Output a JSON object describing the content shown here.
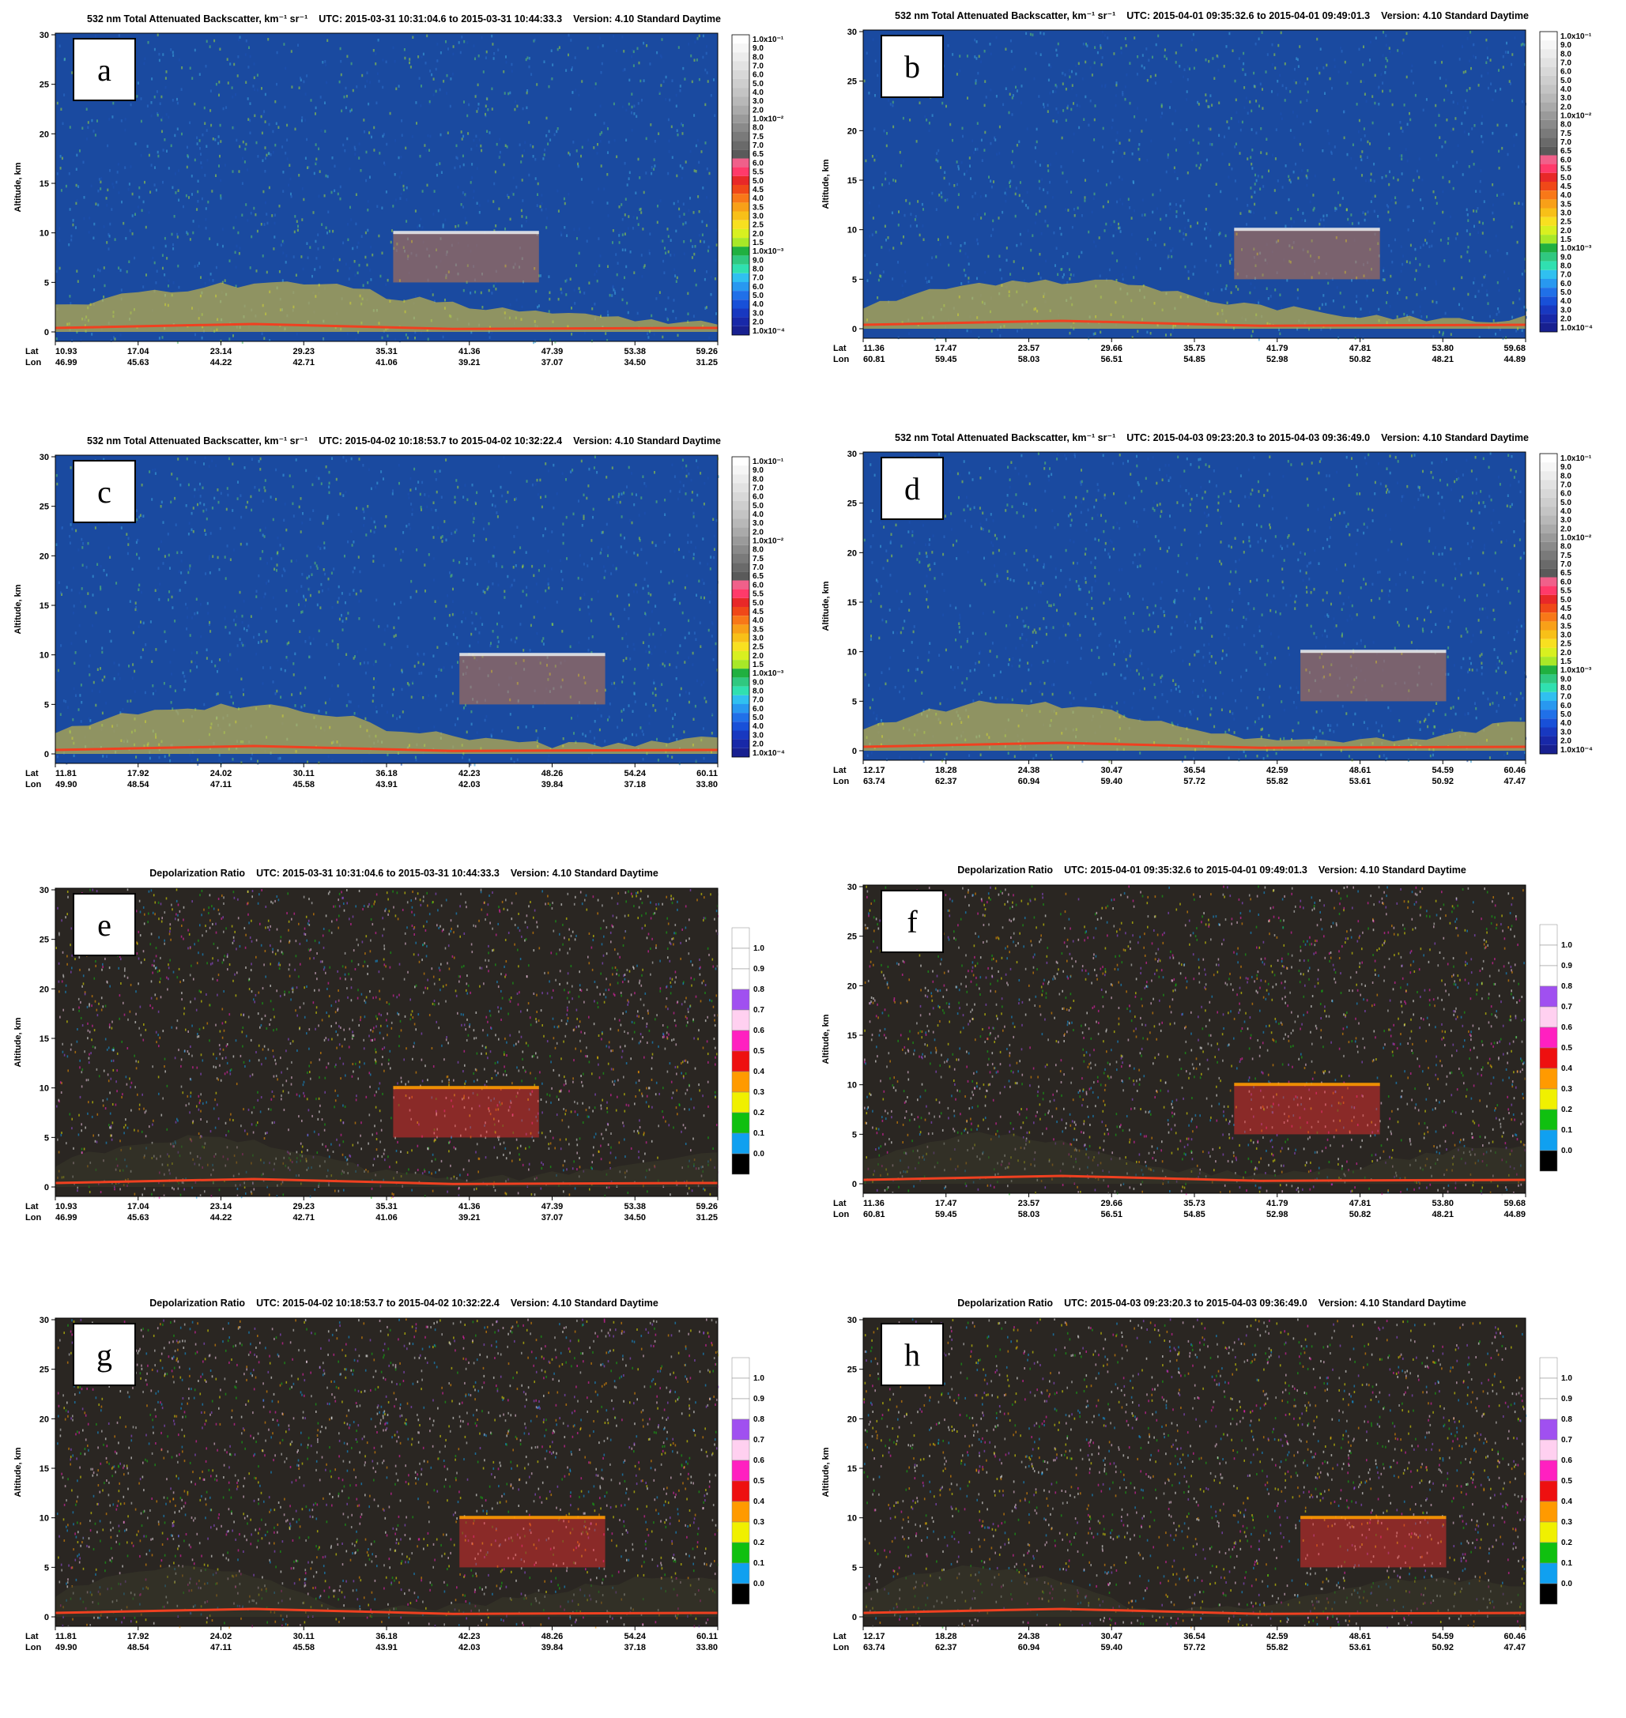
{
  "colors": {
    "back_bg": "#1a4aa0",
    "depol_bg": "#2a2622",
    "ground": "#f04020",
    "aerosol": "#f0d030",
    "cloud": "#e8e8e8",
    "depol_hi": "#ff3030"
  },
  "chart_data": [
    {
      "id": "a",
      "type": "heatmap",
      "title": "532 nm Total Attenuated Backscatter, km⁻¹ sr⁻¹",
      "utc": "UTC:  2015-03-31 10:31:04.6  to  2015-03-31 10:44:33.3",
      "version": "Version: 4.10  Standard  Daytime",
      "ylabel": "Altitude, km",
      "ylim": [
        0,
        30
      ],
      "yticks": [
        "0",
        "5",
        "10",
        "15",
        "20",
        "25",
        "30"
      ],
      "lat": [
        "10.93",
        "17.04",
        "23.14",
        "29.23",
        "35.31",
        "41.36",
        "47.39",
        "53.38",
        "59.26"
      ],
      "lon": [
        "46.99",
        "45.63",
        "44.22",
        "42.71",
        "41.06",
        "39.21",
        "37.07",
        "34.50",
        "31.25"
      ],
      "colorbar": "backscatter"
    },
    {
      "id": "b",
      "type": "heatmap",
      "title": "532 nm Total Attenuated Backscatter, km⁻¹ sr⁻¹",
      "utc": "UTC:  2015-04-01 09:35:32.6  to  2015-04-01 09:49:01.3",
      "version": "Version: 4.10  Standard  Daytime",
      "ylabel": "Altitude, km",
      "ylim": [
        0,
        30
      ],
      "yticks": [
        "0",
        "5",
        "10",
        "15",
        "20",
        "25",
        "30"
      ],
      "lat": [
        "11.36",
        "17.47",
        "23.57",
        "29.66",
        "35.73",
        "41.79",
        "47.81",
        "53.80",
        "59.68"
      ],
      "lon": [
        "60.81",
        "59.45",
        "58.03",
        "56.51",
        "54.85",
        "52.98",
        "50.82",
        "48.21",
        "44.89"
      ],
      "colorbar": "backscatter"
    },
    {
      "id": "c",
      "type": "heatmap",
      "title": "532 nm Total Attenuated Backscatter, km⁻¹ sr⁻¹",
      "utc": "UTC:  2015-04-02 10:18:53.7  to  2015-04-02 10:32:22.4",
      "version": "Version: 4.10  Standard  Daytime",
      "ylabel": "Altitude, km",
      "ylim": [
        0,
        30
      ],
      "yticks": [
        "0",
        "5",
        "10",
        "15",
        "20",
        "25",
        "30"
      ],
      "lat": [
        "11.81",
        "17.92",
        "24.02",
        "30.11",
        "36.18",
        "42.23",
        "48.26",
        "54.24",
        "60.11"
      ],
      "lon": [
        "49.90",
        "48.54",
        "47.11",
        "45.58",
        "43.91",
        "42.03",
        "39.84",
        "37.18",
        "33.80"
      ],
      "colorbar": "backscatter"
    },
    {
      "id": "d",
      "type": "heatmap",
      "title": "532 nm Total Attenuated Backscatter, km⁻¹ sr⁻¹",
      "utc": "UTC:  2015-04-03 09:23:20.3  to  2015-04-03 09:36:49.0",
      "version": "Version: 4.10  Standard  Daytime",
      "ylabel": "Altitude, km",
      "ylim": [
        0,
        30
      ],
      "yticks": [
        "0",
        "5",
        "10",
        "15",
        "20",
        "25",
        "30"
      ],
      "lat": [
        "12.17",
        "18.28",
        "24.38",
        "30.47",
        "36.54",
        "42.59",
        "48.61",
        "54.59",
        "60.46"
      ],
      "lon": [
        "63.74",
        "62.37",
        "60.94",
        "59.40",
        "57.72",
        "55.82",
        "53.61",
        "50.92",
        "47.47"
      ],
      "colorbar": "backscatter"
    },
    {
      "id": "e",
      "type": "heatmap",
      "title": "Depolarization Ratio",
      "utc": "UTC:  2015-03-31 10:31:04.6  to  2015-03-31 10:44:33.3",
      "version": "Version: 4.10  Standard  Daytime",
      "ylabel": "Altitude, km",
      "ylim": [
        0,
        30
      ],
      "yticks": [
        "0",
        "5",
        "10",
        "15",
        "20",
        "25",
        "30"
      ],
      "lat": [
        "10.93",
        "17.04",
        "23.14",
        "29.23",
        "35.31",
        "41.36",
        "47.39",
        "53.38",
        "59.26"
      ],
      "lon": [
        "46.99",
        "45.63",
        "44.22",
        "42.71",
        "41.06",
        "39.21",
        "37.07",
        "34.50",
        "31.25"
      ],
      "colorbar": "depol"
    },
    {
      "id": "f",
      "type": "heatmap",
      "title": "Depolarization Ratio",
      "utc": "UTC:  2015-04-01 09:35:32.6  to  2015-04-01 09:49:01.3",
      "version": "Version: 4.10  Standard  Daytime",
      "ylabel": "Altitude, km",
      "ylim": [
        0,
        30
      ],
      "yticks": [
        "0",
        "5",
        "10",
        "15",
        "20",
        "25",
        "30"
      ],
      "lat": [
        "11.36",
        "17.47",
        "23.57",
        "29.66",
        "35.73",
        "41.79",
        "47.81",
        "53.80",
        "59.68"
      ],
      "lon": [
        "60.81",
        "59.45",
        "58.03",
        "56.51",
        "54.85",
        "52.98",
        "50.82",
        "48.21",
        "44.89"
      ],
      "colorbar": "depol"
    },
    {
      "id": "g",
      "type": "heatmap",
      "title": "Depolarization Ratio",
      "utc": "UTC:  2015-04-02 10:18:53.7  to  2015-04-02 10:32:22.4",
      "version": "Version: 4.10  Standard  Daytime",
      "ylabel": "Altitude, km",
      "ylim": [
        0,
        30
      ],
      "yticks": [
        "0",
        "5",
        "10",
        "15",
        "20",
        "25",
        "30"
      ],
      "lat": [
        "11.81",
        "17.92",
        "24.02",
        "30.11",
        "36.18",
        "42.23",
        "48.26",
        "54.24",
        "60.11"
      ],
      "lon": [
        "49.90",
        "48.54",
        "47.11",
        "45.58",
        "43.91",
        "42.03",
        "39.84",
        "37.18",
        "33.80"
      ],
      "colorbar": "depol"
    },
    {
      "id": "h",
      "type": "heatmap",
      "title": "Depolarization Ratio",
      "utc": "UTC:  2015-04-03 09:23:20.3  to  2015-04-03 09:36:49.0",
      "version": "Version: 4.10  Standard  Daytime",
      "ylabel": "Altitude, km",
      "ylim": [
        0,
        30
      ],
      "yticks": [
        "0",
        "5",
        "10",
        "15",
        "20",
        "25",
        "30"
      ],
      "lat": [
        "12.17",
        "18.28",
        "24.38",
        "30.47",
        "36.54",
        "42.59",
        "48.61",
        "54.59",
        "60.46"
      ],
      "lon": [
        "63.74",
        "62.37",
        "60.94",
        "59.40",
        "57.72",
        "55.82",
        "53.61",
        "50.92",
        "47.47"
      ],
      "colorbar": "depol"
    }
  ],
  "colorbars": {
    "backscatter": {
      "labels": [
        "1.0x10⁻¹",
        "9.0",
        "8.0",
        "7.0",
        "6.0",
        "5.0",
        "4.0",
        "3.0",
        "2.0",
        "1.0x10⁻²",
        "8.0",
        "7.5",
        "7.0",
        "6.5",
        "6.0",
        "5.5",
        "5.0",
        "4.5",
        "4.0",
        "3.5",
        "3.0",
        "2.5",
        "2.0",
        "1.5",
        "1.0x10⁻³",
        "9.0",
        "8.0",
        "7.0",
        "6.0",
        "5.0",
        "4.0",
        "3.0",
        "2.0",
        "1.0x10⁻⁴"
      ],
      "colors": [
        "#ffffff",
        "#f6f6f6",
        "#ececec",
        "#e2e2e2",
        "#d8d8d8",
        "#cecece",
        "#c4c4c4",
        "#b8b8b8",
        "#aaaaaa",
        "#9a9a9a",
        "#8a8a8a",
        "#7a7a7a",
        "#6a6a6a",
        "#5a5a5a",
        "#f0608a",
        "#ff3a6a",
        "#e82828",
        "#f04818",
        "#f87818",
        "#f8a018",
        "#f8c018",
        "#f8e020",
        "#d8f020",
        "#a8e828",
        "#20b040",
        "#30c880",
        "#30e0b0",
        "#30c0f0",
        "#2898f0",
        "#2070e8",
        "#1850d8",
        "#1838c0",
        "#1828a8",
        "#182090"
      ]
    },
    "depol": {
      "labels": [
        "1.0",
        "0.9",
        "0.8",
        "0.7",
        "0.6",
        "0.5",
        "0.4",
        "0.3",
        "0.2",
        "0.1",
        "0.0"
      ],
      "colors": [
        "#ffffff",
        "#ffffff",
        "#ffffff",
        "#a050f0",
        "#ffd0f0",
        "#ff20c0",
        "#ee1010",
        "#ff9a00",
        "#f0f000",
        "#10c010",
        "#10a0f0",
        "#000000"
      ]
    }
  }
}
